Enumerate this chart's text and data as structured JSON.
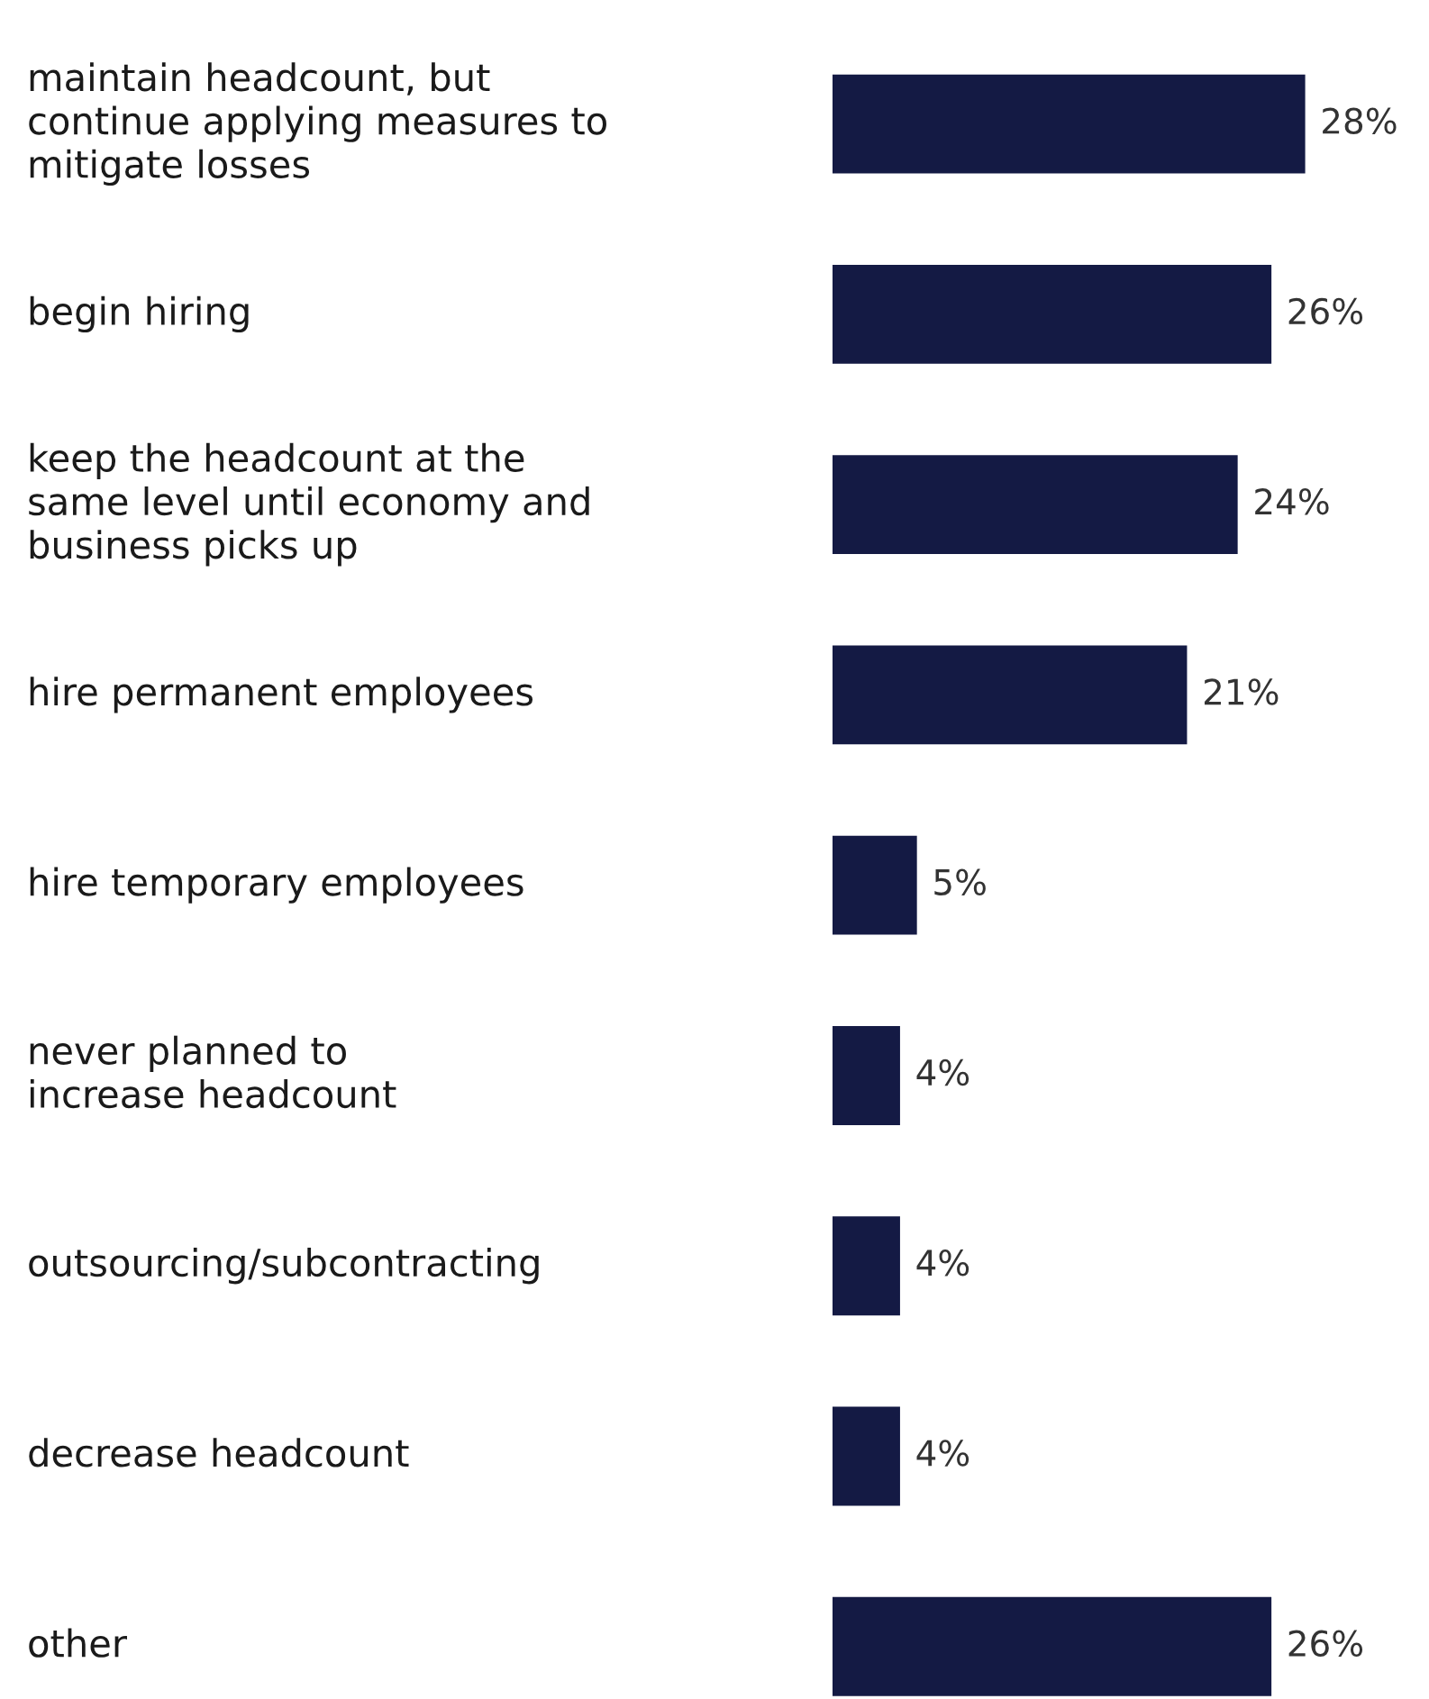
{
  "chart_data": {
    "type": "bar",
    "orientation": "horizontal",
    "categories": [
      "maintain headcount, but\ncontinue applying measures to\nmitigate losses",
      "begin hiring",
      "keep the headcount at the\nsame level until economy and\nbusiness picks up",
      "hire permanent employees",
      "hire temporary employees",
      "never planned to\nincrease headcount",
      "outsourcing/subcontracting",
      "decrease headcount",
      "other"
    ],
    "values": [
      28,
      26,
      24,
      21,
      5,
      4,
      4,
      4,
      26
    ],
    "value_labels": [
      "28%",
      "26%",
      "24%",
      "21%",
      "5%",
      "4%",
      "4%",
      "4%",
      "26%"
    ],
    "color": "#141a44",
    "legend": false
  }
}
